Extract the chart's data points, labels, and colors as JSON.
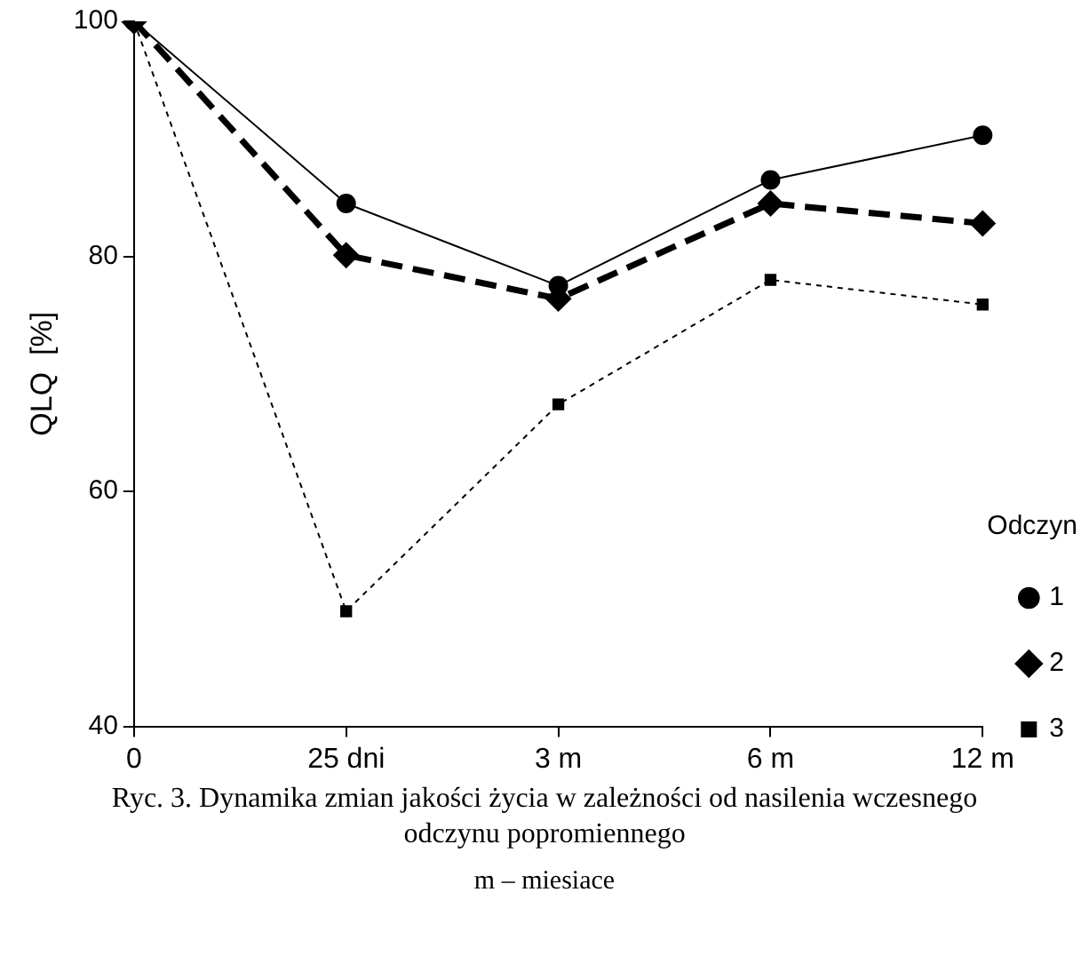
{
  "chart_data": {
    "type": "line",
    "title": "Ryc. 3. Dynamika zmian jakości życia w zależności od nasilenia wczesnego odczynu popromiennego",
    "ylabel": "QLQ  [%]",
    "legend_title": "Odczyn",
    "annotations": [
      "m – miesiace"
    ],
    "categories": [
      "0",
      "25 dni",
      "3 m",
      "6 m",
      "12 m"
    ],
    "ylim": [
      40,
      100
    ],
    "yticks": [
      40,
      60,
      80,
      100
    ],
    "grid": false,
    "legend": "right",
    "series": [
      {
        "name": "1",
        "color": "#000000",
        "marker": "circle",
        "line_style": "solid",
        "values": [
          100,
          84.5,
          77.5,
          86.5,
          90.3
        ]
      },
      {
        "name": "2",
        "color": "#000000",
        "marker": "diamond",
        "line_style": "dashed",
        "values": [
          100,
          80.1,
          76.4,
          84.5,
          82.8
        ]
      },
      {
        "name": "3",
        "color": "#000000",
        "marker": "square",
        "line_style": "dotted",
        "values": [
          100,
          49.8,
          67.4,
          78.0,
          75.9
        ]
      }
    ]
  }
}
